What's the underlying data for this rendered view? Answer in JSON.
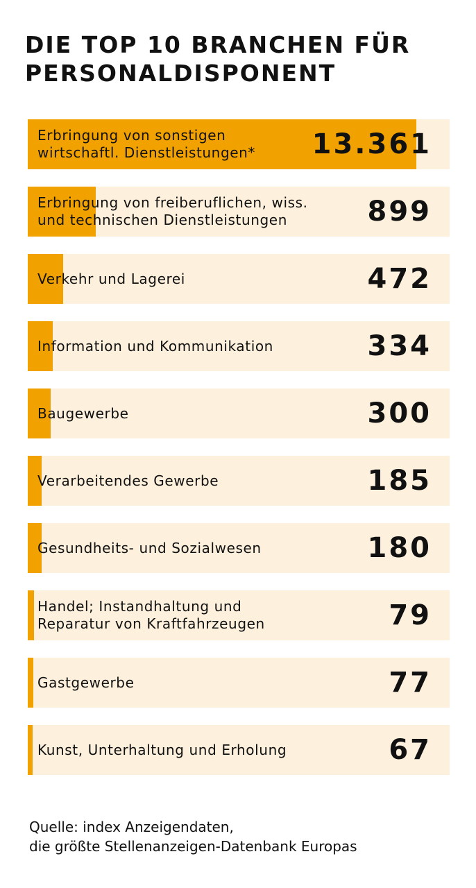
{
  "chart_data": {
    "type": "bar",
    "orientation": "horizontal",
    "title": "DIE TOP 10 BRANCHEN FÜR PERSONALDISPONENT",
    "categories": [
      "Erbringung von sonstigen\nwirtschaftl. Dienstleistungen*",
      "Erbringung von freiberuflichen, wiss.\nund technischen Dienstleistungen",
      "Verkehr und Lagerei",
      "Information und Kommunikation",
      "Baugewerbe",
      "Verarbeitendes Gewerbe",
      "Gesundheits- und Sozialwesen",
      "Handel; Instandhaltung und\nReparatur von Kraftfahrzeugen",
      "Gastgewerbe",
      "Kunst, Unterhaltung und Erholung"
    ],
    "values": [
      13361,
      899,
      472,
      334,
      300,
      185,
      180,
      79,
      77,
      67
    ],
    "value_labels": [
      "13.361",
      "899",
      "472",
      "334",
      "300",
      "185",
      "180",
      "79",
      "77",
      "67"
    ],
    "colors": {
      "bar": "#F2A200",
      "track": "#FDF0DC"
    },
    "source": "Quelle: index Anzeigendaten,\ndie größte Stellenanzeigen-Datenbank Europas"
  }
}
